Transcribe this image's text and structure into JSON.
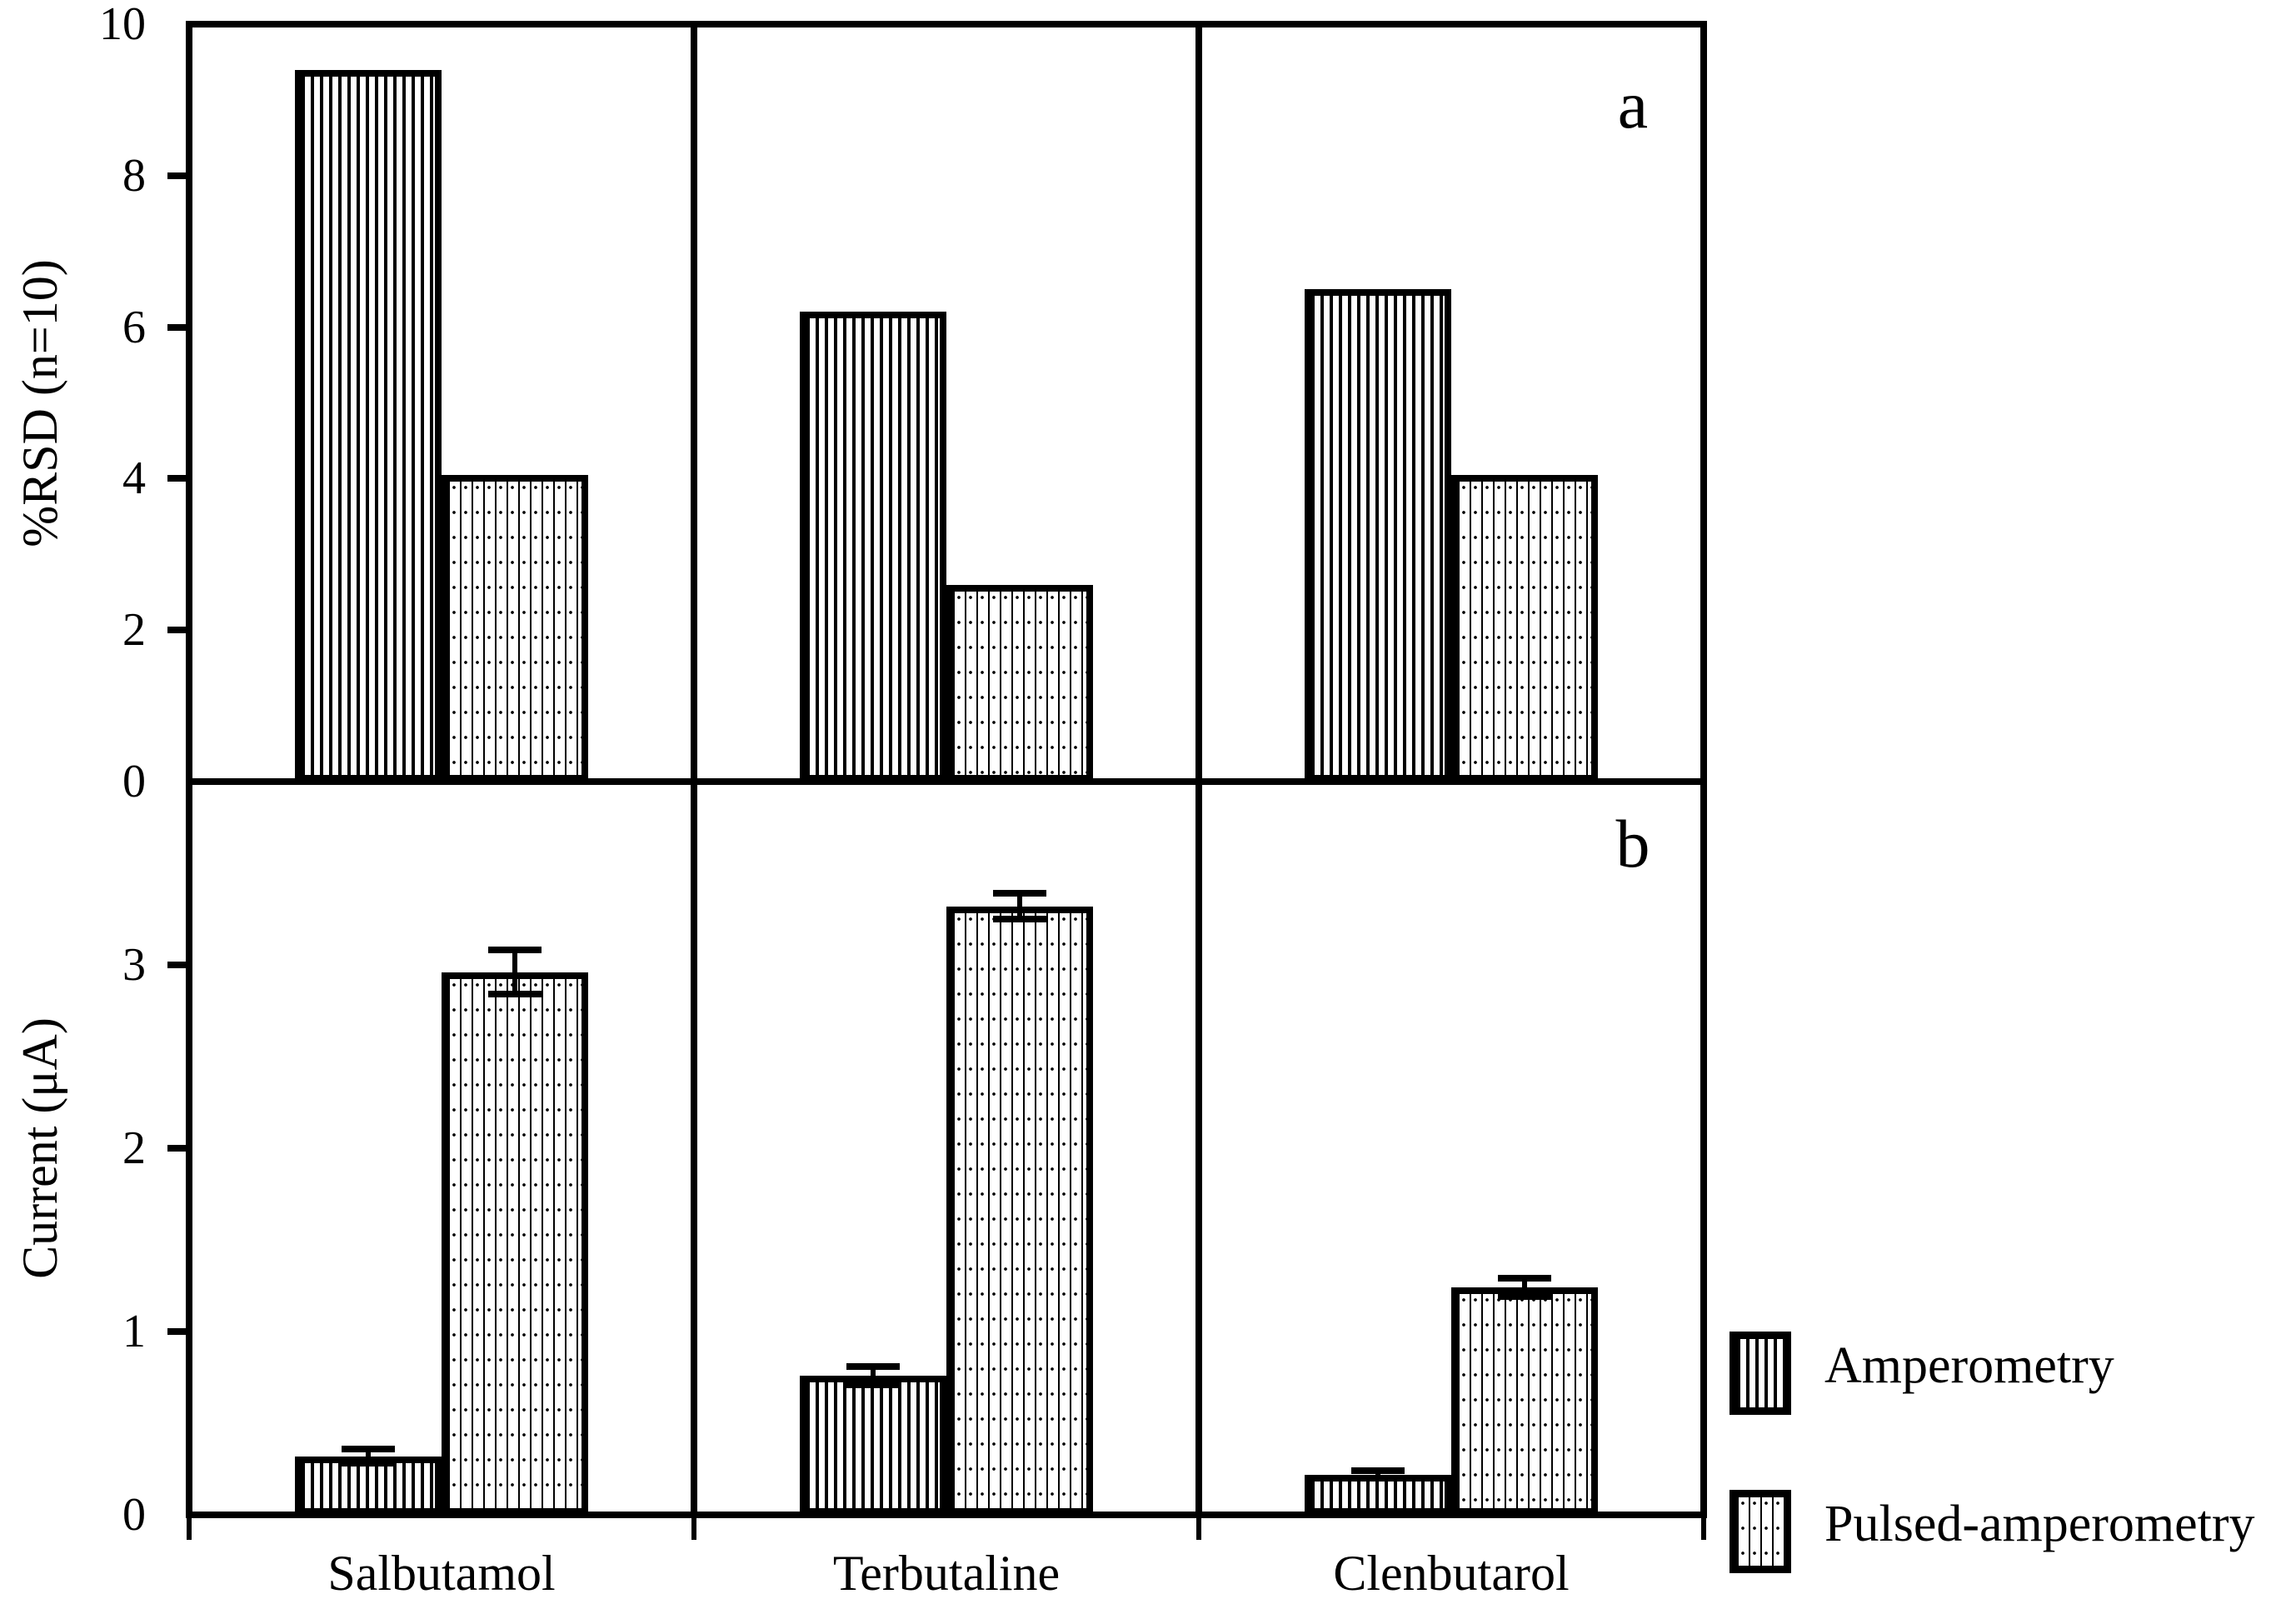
{
  "figure_type": "two-panel bar chart",
  "chart_data": [
    {
      "type": "bar",
      "panel_label": "a",
      "ylabel": "%RSD (n=10)",
      "ylim": [
        0,
        10
      ],
      "yticks": [
        0,
        2,
        4,
        6,
        8,
        10
      ],
      "grid": false,
      "categories": [
        "Salbutamol",
        "Terbutaline",
        "Clenbutarol"
      ],
      "series": [
        {
          "name": "Amperometry",
          "values": [
            9.4,
            6.2,
            6.5
          ]
        },
        {
          "name": "Pulsed-amperometry",
          "values": [
            4.05,
            2.6,
            4.05
          ]
        }
      ]
    },
    {
      "type": "bar",
      "panel_label": "b",
      "ylabel": "Current (μA)",
      "ylim": [
        0,
        4
      ],
      "yticks": [
        0,
        1,
        2,
        3
      ],
      "grid": false,
      "categories": [
        "Salbutamol",
        "Terbutaline",
        "Clenbutarol"
      ],
      "series": [
        {
          "name": "Amperometry",
          "values": [
            0.32,
            0.76,
            0.22
          ],
          "errors": [
            0.04,
            0.05,
            0.02
          ]
        },
        {
          "name": "Pulsed-amperometry",
          "values": [
            2.96,
            3.32,
            1.24
          ],
          "errors": [
            0.12,
            0.07,
            0.05
          ]
        }
      ]
    }
  ],
  "legend": {
    "position": "right-bottom",
    "items": [
      {
        "label": "Amperometry",
        "pattern": "dense-vertical-lines"
      },
      {
        "label": "Pulsed-amperometry",
        "pattern": "fine-dotted-vertical-lines"
      }
    ]
  },
  "colors": {
    "foreground": "#000000",
    "background": "#ffffff"
  }
}
